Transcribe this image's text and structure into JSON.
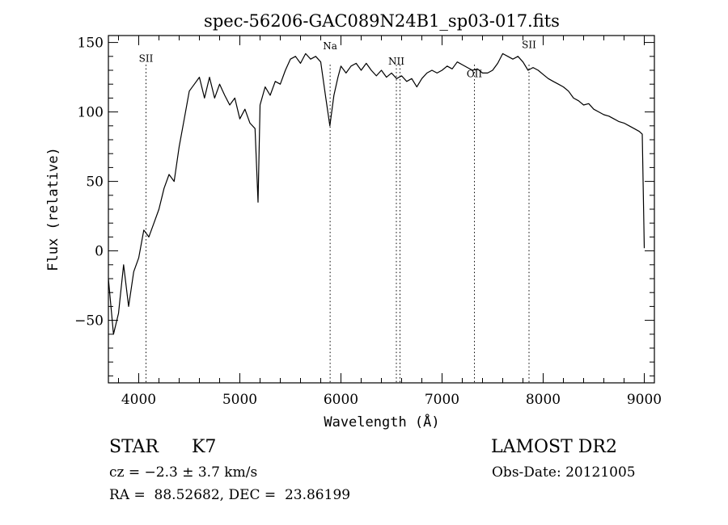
{
  "chart_data": {
    "type": "line",
    "title": "spec-56206-GAC089N24B1_sp03-017.fits",
    "xlabel": "Wavelength (Å)",
    "ylabel": "Flux (relative)",
    "xlim": [
      3700,
      9100
    ],
    "ylim": [
      -95,
      155
    ],
    "x_ticks": [
      4000,
      5000,
      6000,
      7000,
      8000,
      9000
    ],
    "y_ticks": [
      -50,
      0,
      50,
      100,
      150
    ],
    "grid": false,
    "series": [
      {
        "x": [
          3700,
          3750,
          3800,
          3850,
          3900,
          3950,
          4000,
          4050,
          4100,
          4150,
          4200,
          4250,
          4300,
          4350,
          4400,
          4450,
          4500,
          4550,
          4600,
          4650,
          4700,
          4750,
          4800,
          4850,
          4900,
          4950,
          5000,
          5050,
          5100,
          5150,
          5180,
          5200,
          5250,
          5300,
          5350,
          5400,
          5450,
          5500,
          5550,
          5600,
          5650,
          5700,
          5750,
          5800,
          5850,
          5890,
          5930,
          5970,
          6000,
          6050,
          6100,
          6150,
          6200,
          6250,
          6300,
          6350,
          6400,
          6450,
          6500,
          6550,
          6600,
          6650,
          6700,
          6750,
          6800,
          6850,
          6900,
          6950,
          7000,
          7050,
          7100,
          7150,
          7200,
          7250,
          7300,
          7350,
          7400,
          7450,
          7500,
          7550,
          7600,
          7650,
          7700,
          7750,
          7800,
          7850,
          7900,
          7950,
          8000,
          8050,
          8100,
          8150,
          8200,
          8250,
          8300,
          8350,
          8400,
          8450,
          8500,
          8550,
          8600,
          8650,
          8700,
          8750,
          8800,
          8850,
          8900,
          8950,
          8980,
          9000
        ],
        "y": [
          -20,
          -60,
          -45,
          -10,
          -40,
          -15,
          -5,
          15,
          10,
          20,
          30,
          45,
          55,
          50,
          75,
          95,
          115,
          120,
          125,
          110,
          125,
          110,
          120,
          112,
          105,
          110,
          95,
          102,
          92,
          88,
          35,
          105,
          118,
          112,
          122,
          120,
          130,
          138,
          140,
          135,
          142,
          138,
          140,
          136,
          110,
          90,
          112,
          125,
          133,
          128,
          133,
          135,
          130,
          135,
          130,
          126,
          130,
          125,
          128,
          124,
          126,
          122,
          124,
          118,
          124,
          128,
          130,
          128,
          130,
          133,
          131,
          136,
          134,
          132,
          130,
          131,
          128,
          128,
          130,
          135,
          142,
          140,
          138,
          140,
          136,
          130,
          132,
          130,
          127,
          124,
          122,
          120,
          118,
          115,
          110,
          108,
          105,
          106,
          102,
          100,
          98,
          97,
          95,
          93,
          92,
          90,
          88,
          86,
          84,
          2
        ]
      }
    ],
    "lines": [
      {
        "label": "SII",
        "x": 4072,
        "label_y": 136
      },
      {
        "label": "Na",
        "x": 5893,
        "label_y": 145
      },
      {
        "label": "NII",
        "x": 6548,
        "label_y": 134
      },
      {
        "label": "",
        "x": 6584,
        "label_y": null
      },
      {
        "label": "OII",
        "x": 7320,
        "label_y": 125
      },
      {
        "label": "SII",
        "x": 7860,
        "label_y": 146
      }
    ]
  },
  "info": {
    "object_class": "STAR",
    "subclass": "K7",
    "velocity": "cz = −2.3 ± 3.7 km/s",
    "coords": "RA =  88.52682, DEC =  23.86199",
    "survey": "LAMOST DR2",
    "obs_date": "Obs-Date: 20121005"
  }
}
